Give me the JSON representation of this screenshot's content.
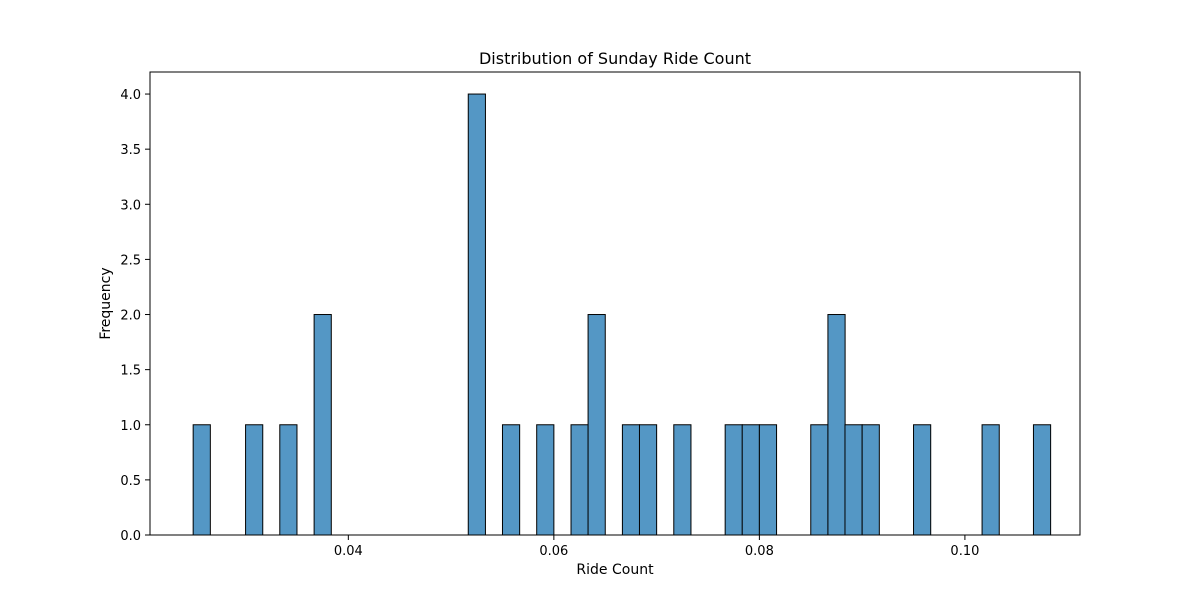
{
  "chart_data": {
    "type": "bar",
    "title": "Distribution of Sunday Ride Count",
    "xlabel": "Ride Count",
    "ylabel": "Frequency",
    "xlim": [
      0.0207,
      0.1112
    ],
    "ylim": [
      0,
      4.2
    ],
    "x_ticks": [
      {
        "value": 0.04,
        "label": "0.04"
      },
      {
        "value": 0.06,
        "label": "0.06"
      },
      {
        "value": 0.08,
        "label": "0.08"
      },
      {
        "value": 0.1,
        "label": "0.10"
      }
    ],
    "y_ticks": [
      {
        "value": 0.0,
        "label": "0.0"
      },
      {
        "value": 0.5,
        "label": "0.5"
      },
      {
        "value": 1.0,
        "label": "1.0"
      },
      {
        "value": 1.5,
        "label": "1.5"
      },
      {
        "value": 2.0,
        "label": "2.0"
      },
      {
        "value": 2.5,
        "label": "2.5"
      },
      {
        "value": 3.0,
        "label": "3.0"
      },
      {
        "value": 3.5,
        "label": "3.5"
      },
      {
        "value": 4.0,
        "label": "4.0"
      }
    ],
    "bin_width": 0.001672,
    "bins": [
      {
        "x0": 0.0249,
        "count": 1
      },
      {
        "x0": 0.03,
        "count": 1
      },
      {
        "x0": 0.03333,
        "count": 1
      },
      {
        "x0": 0.03667,
        "count": 2
      },
      {
        "x0": 0.05167,
        "count": 4
      },
      {
        "x0": 0.055,
        "count": 1
      },
      {
        "x0": 0.05833,
        "count": 1
      },
      {
        "x0": 0.06167,
        "count": 1
      },
      {
        "x0": 0.06333,
        "count": 2
      },
      {
        "x0": 0.06667,
        "count": 1
      },
      {
        "x0": 0.06833,
        "count": 1
      },
      {
        "x0": 0.07167,
        "count": 1
      },
      {
        "x0": 0.07667,
        "count": 1
      },
      {
        "x0": 0.07833,
        "count": 1
      },
      {
        "x0": 0.08,
        "count": 1
      },
      {
        "x0": 0.085,
        "count": 1
      },
      {
        "x0": 0.08667,
        "count": 2
      },
      {
        "x0": 0.08833,
        "count": 1
      },
      {
        "x0": 0.09,
        "count": 1
      },
      {
        "x0": 0.095,
        "count": 1
      },
      {
        "x0": 0.10167,
        "count": 1
      },
      {
        "x0": 0.10667,
        "count": 1
      }
    ],
    "bar_color": "#5497c5",
    "edge_color": "#000000",
    "grid": false,
    "legend": "none"
  }
}
